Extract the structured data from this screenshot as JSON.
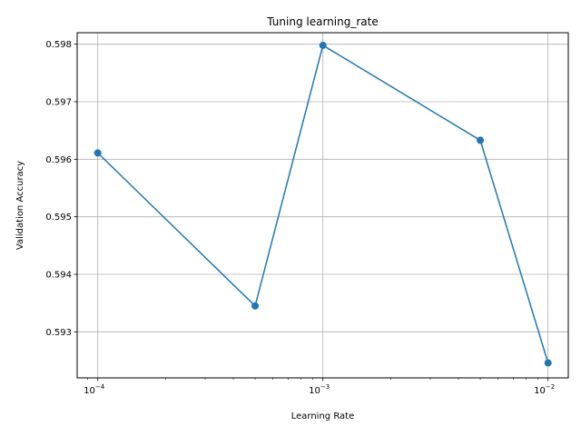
{
  "chart_data": {
    "type": "line",
    "title": "Tuning learning_rate",
    "xlabel": "Learning Rate",
    "ylabel": "Validation Accuracy",
    "xscale": "log",
    "grid": true,
    "x": [
      0.0001,
      0.0005,
      0.001,
      0.005,
      0.01
    ],
    "series": [
      {
        "values": [
          0.59611,
          0.59345,
          0.59798,
          0.59633,
          0.59246
        ],
        "color": "#1f77b4",
        "marker": "circle"
      }
    ],
    "xlim": [
      8.1e-05,
      0.0123
    ],
    "ylim": [
      0.5922,
      0.5982
    ],
    "xticks": [
      0.0001,
      0.001,
      0.01
    ],
    "xtick_labels": [
      {
        "base": "10",
        "exp": "−4"
      },
      {
        "base": "10",
        "exp": "−3"
      },
      {
        "base": "10",
        "exp": "−2"
      }
    ],
    "yticks": [
      0.593,
      0.594,
      0.595,
      0.596,
      0.597,
      0.598
    ],
    "ytick_labels": [
      "0.593",
      "0.594",
      "0.595",
      "0.596",
      "0.597",
      "0.598"
    ]
  }
}
